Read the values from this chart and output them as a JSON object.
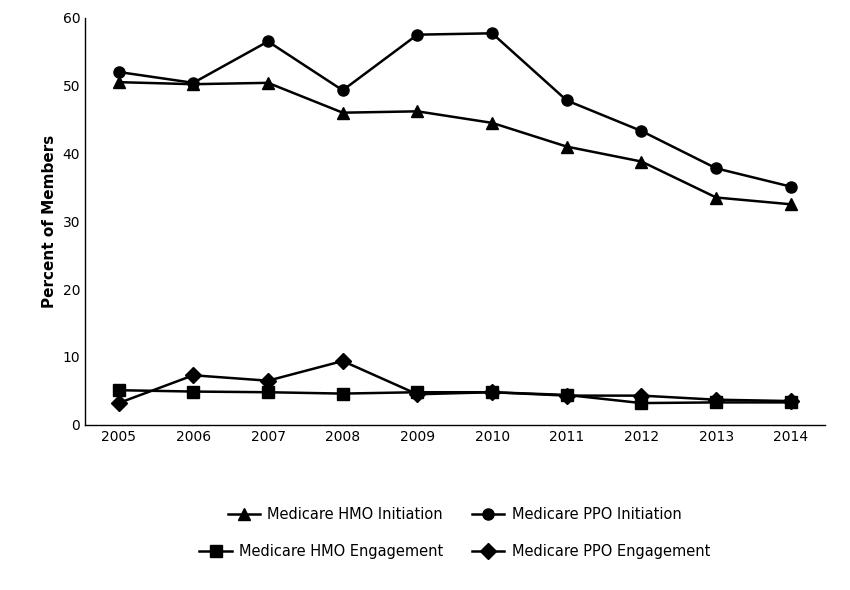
{
  "years": [
    2005,
    2006,
    2007,
    2008,
    2009,
    2010,
    2011,
    2012,
    2013,
    2014
  ],
  "medicare_hmo_initiation": [
    50.5,
    50.2,
    50.4,
    46.0,
    46.2,
    44.5,
    41.0,
    38.8,
    33.5,
    32.5
  ],
  "medicare_ppo_initiation": [
    52.0,
    50.4,
    56.5,
    49.3,
    57.5,
    57.7,
    47.8,
    43.3,
    37.8,
    35.1
  ],
  "medicare_hmo_engagement": [
    5.1,
    4.9,
    4.8,
    4.6,
    4.8,
    4.8,
    4.4,
    3.2,
    3.3,
    3.3
  ],
  "medicare_ppo_engagement": [
    3.2,
    7.3,
    6.5,
    9.4,
    4.5,
    4.8,
    4.3,
    4.3,
    3.7,
    3.5
  ],
  "ylabel": "Percent of Members",
  "ylim": [
    0,
    60
  ],
  "yticks": [
    0,
    10,
    20,
    30,
    40,
    50,
    60
  ],
  "legend_labels": [
    "Medicare HMO Initiation",
    "Medicare PPO Initiation",
    "Medicare HMO Engagement",
    "Medicare PPO Engagement"
  ],
  "line_color": "#000000",
  "background_color": "#ffffff"
}
